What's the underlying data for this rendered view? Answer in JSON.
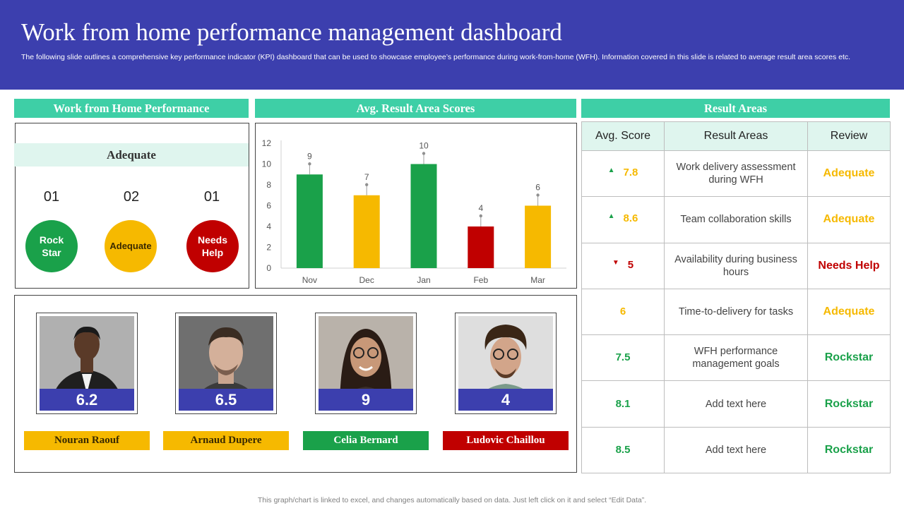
{
  "header": {
    "title": "Work from home performance management dashboard",
    "subtitle": "The following slide outlines a comprehensive key performance indicator (KPI) dashboard that can be used to showcase employee’s performance during work-from-home (WFH). Information covered in this slide is related to average result area scores etc."
  },
  "wfh": {
    "heading": "Work from Home Performance",
    "band_label": "Adequate",
    "categories": [
      {
        "count": "01",
        "label": "Rock Star",
        "color": "#1aa14a"
      },
      {
        "count": "02",
        "label": "Adequate",
        "color": "#f6b900"
      },
      {
        "count": "01",
        "label": "Needs Help",
        "color": "#c00000"
      }
    ]
  },
  "chart_heading": "Avg. Result Area Scores",
  "chart_data": {
    "type": "bar",
    "title": "Avg. Result Area Scores",
    "categories": [
      "Nov",
      "Dec",
      "Jan",
      "Feb",
      "Mar"
    ],
    "values": [
      9,
      7,
      10,
      4,
      6
    ],
    "colors": [
      "#1aa14a",
      "#f6b900",
      "#1aa14a",
      "#c00000",
      "#f6b900"
    ],
    "ylim": [
      0,
      12
    ],
    "yticks": [
      0,
      2,
      4,
      6,
      8,
      10,
      12
    ],
    "xlabel": "",
    "ylabel": ""
  },
  "people": [
    {
      "name": "Nouran Raouf",
      "score": "6.2",
      "tag_color": "#f6b900",
      "tag_text_color": "#3a2a00",
      "photo_bg": "#8c8c8c"
    },
    {
      "name": "Arnaud  Dupere",
      "score": "6.5",
      "tag_color": "#f6b900",
      "tag_text_color": "#3a2a00",
      "photo_bg": "#7d7d7d"
    },
    {
      "name": "Celia Bernard",
      "score": "9",
      "tag_color": "#1aa14a",
      "tag_text_color": "#ffffff",
      "photo_bg": "#a9a29a"
    },
    {
      "name": "Ludovic  Chaillou",
      "score": "4",
      "tag_color": "#c00000",
      "tag_text_color": "#ffffff",
      "photo_bg": "#dcdcdc"
    }
  ],
  "result_areas": {
    "heading": "Result Areas",
    "columns": [
      "Avg. Score",
      "Result Areas",
      "Review"
    ],
    "rows": [
      {
        "score": "7.8",
        "trend": "up",
        "area": "Work delivery assessment during WFH",
        "review": "Adequate",
        "score_color": "#f6b900",
        "review_color": "#f6b900"
      },
      {
        "score": "8.6",
        "trend": "up",
        "area": "Team collaboration skills",
        "review": "Adequate",
        "score_color": "#f6b900",
        "review_color": "#f6b900"
      },
      {
        "score": "5",
        "trend": "down",
        "area": "Availability  during business hours",
        "review": "Needs Help",
        "score_color": "#c00000",
        "review_color": "#c00000"
      },
      {
        "score": "6",
        "trend": "",
        "area": "Time-to-delivery for tasks",
        "review": "Adequate",
        "score_color": "#f6b900",
        "review_color": "#f6b900"
      },
      {
        "score": "7.5",
        "trend": "",
        "area": "WFH performance management goals",
        "review": "Rockstar",
        "score_color": "#1aa14a",
        "review_color": "#1aa14a"
      },
      {
        "score": "8.1",
        "trend": "",
        "area": "Add text here",
        "review": "Rockstar",
        "score_color": "#1aa14a",
        "review_color": "#1aa14a"
      },
      {
        "score": "8.5",
        "trend": "",
        "area": "Add text here",
        "review": "Rockstar",
        "score_color": "#1aa14a",
        "review_color": "#1aa14a"
      }
    ]
  },
  "footer": "This graph/chart is linked to excel,  and changes automatically based on data. Just left click on it and select “Edit Data”.",
  "colors": {
    "header": "#3c3fae",
    "section": "#3ecfa6",
    "up": "#1aa14a",
    "down": "#c00000"
  }
}
